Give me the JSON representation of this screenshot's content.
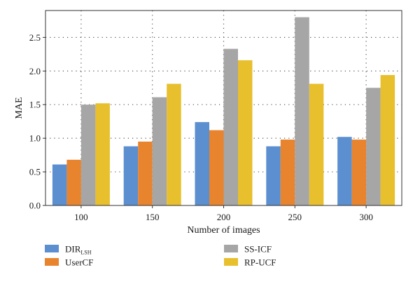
{
  "chart_data": {
    "type": "bar",
    "title": "",
    "xlabel": "Number of images",
    "ylabel": "MAE",
    "categories": [
      "100",
      "150",
      "200",
      "250",
      "300"
    ],
    "ylim": [
      0,
      2.9
    ],
    "yticks": [
      "0.0",
      "0.5",
      "1.0",
      "1.5",
      "2.0",
      "2.5"
    ],
    "grid": "dotted",
    "legend_position": "bottom",
    "series": [
      {
        "name": "DIR",
        "name_subscript": "LSH",
        "color": "#5b8fcf",
        "values": [
          0.61,
          0.88,
          1.24,
          0.88,
          1.02
        ]
      },
      {
        "name": "UserCF",
        "color": "#e8832e",
        "values": [
          0.68,
          0.95,
          1.12,
          0.98,
          0.98
        ]
      },
      {
        "name": "SS-ICF",
        "color": "#a6a6a6",
        "values": [
          1.5,
          1.61,
          2.33,
          2.8,
          1.75
        ]
      },
      {
        "name": "RP-UCF",
        "color": "#e8bf2c",
        "values": [
          1.52,
          1.81,
          2.16,
          1.81,
          1.94
        ]
      }
    ]
  }
}
